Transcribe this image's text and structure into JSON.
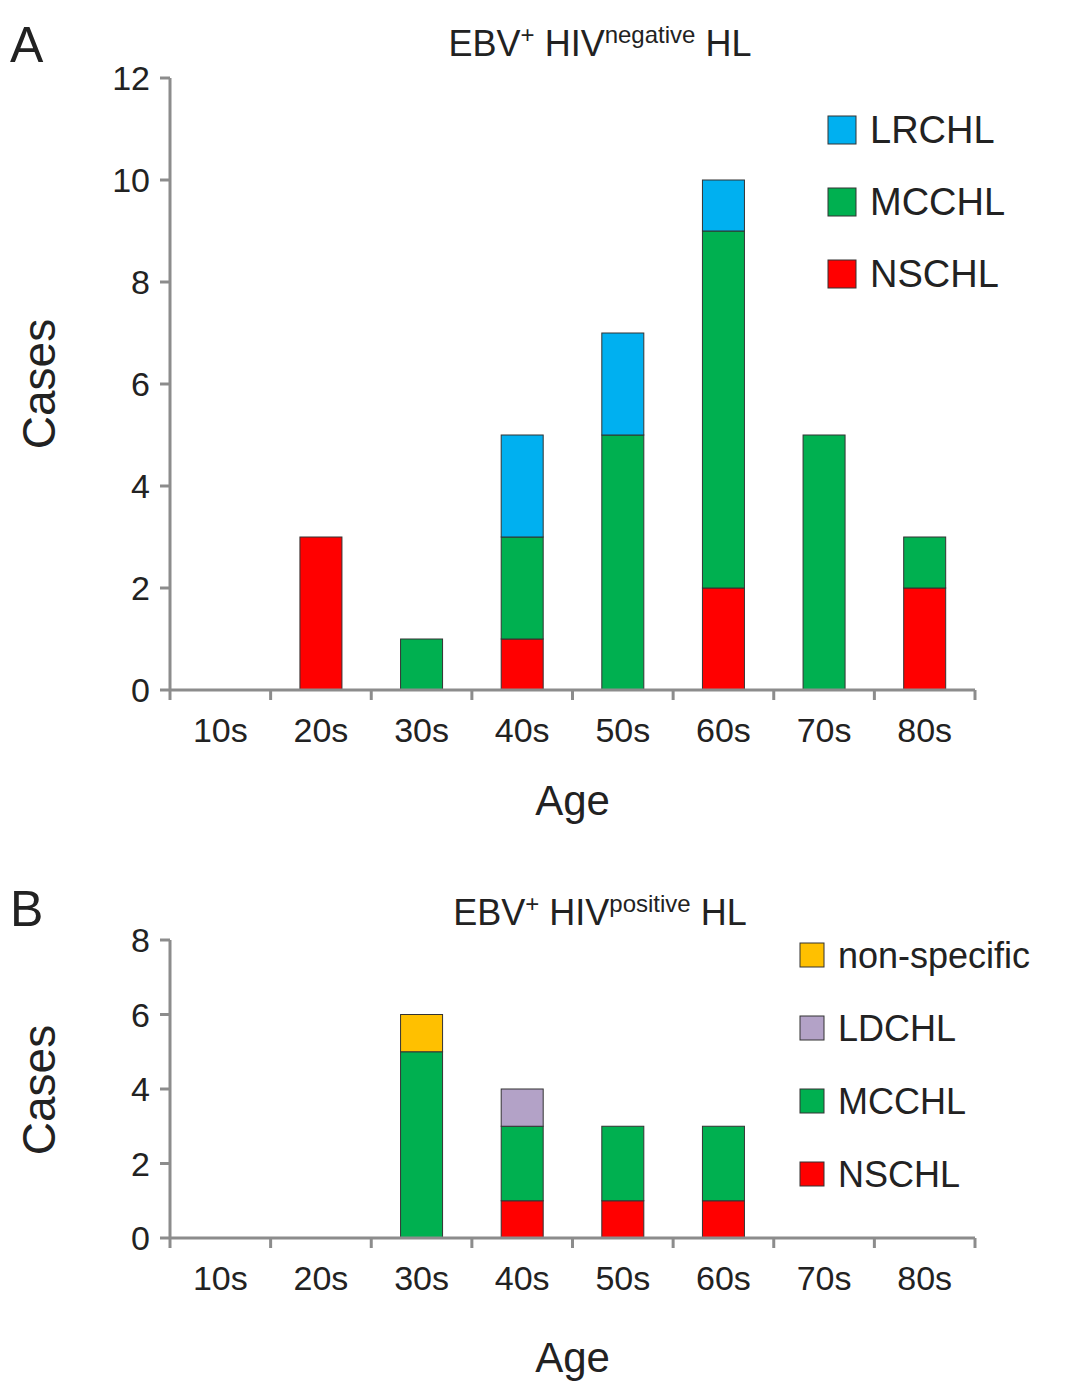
{
  "chart_data": [
    {
      "type": "bar",
      "stacked": true,
      "panel": "A",
      "title": [
        "EBV",
        "+",
        " HIV",
        "negative",
        " HL"
      ],
      "x_label": "Age",
      "y_label": "Cases",
      "categories": [
        "10s",
        "20s",
        "30s",
        "40s",
        "50s",
        "60s",
        "70s",
        "80s"
      ],
      "ylim": [
        0,
        12
      ],
      "yticks": [
        0,
        2,
        4,
        6,
        8,
        10,
        12
      ],
      "legend": "right",
      "series": [
        {
          "name": "NSCHL",
          "color": "#ff0000",
          "values": [
            0,
            3,
            0,
            1,
            0,
            2,
            0,
            2
          ]
        },
        {
          "name": "MCCHL",
          "color": "#00b050",
          "values": [
            0,
            0,
            1,
            2,
            5,
            7,
            5,
            1
          ]
        },
        {
          "name": "LRCHL",
          "color": "#00b0f0",
          "values": [
            0,
            0,
            0,
            2,
            2,
            1,
            0,
            0
          ]
        }
      ]
    },
    {
      "type": "bar",
      "stacked": true,
      "panel": "B",
      "title": [
        "EBV",
        "+",
        " HIV",
        "positive",
        " HL"
      ],
      "x_label": "Age",
      "y_label": "Cases",
      "categories": [
        "10s",
        "20s",
        "30s",
        "40s",
        "50s",
        "60s",
        "70s",
        "80s"
      ],
      "ylim": [
        0,
        8
      ],
      "yticks": [
        0,
        2,
        4,
        6,
        8
      ],
      "legend": "right",
      "series": [
        {
          "name": "NSCHL",
          "color": "#ff0000",
          "values": [
            0,
            0,
            0,
            1,
            1,
            1,
            0,
            0
          ]
        },
        {
          "name": "MCCHL",
          "color": "#00b050",
          "values": [
            0,
            0,
            5,
            2,
            2,
            2,
            0,
            0
          ]
        },
        {
          "name": "LDCHL",
          "color": "#b3a2c7",
          "values": [
            0,
            0,
            0,
            1,
            0,
            0,
            0,
            0
          ]
        },
        {
          "name": "non-specific",
          "color": "#ffc000",
          "values": [
            0,
            0,
            1,
            0,
            0,
            0,
            0,
            0
          ]
        }
      ]
    }
  ]
}
